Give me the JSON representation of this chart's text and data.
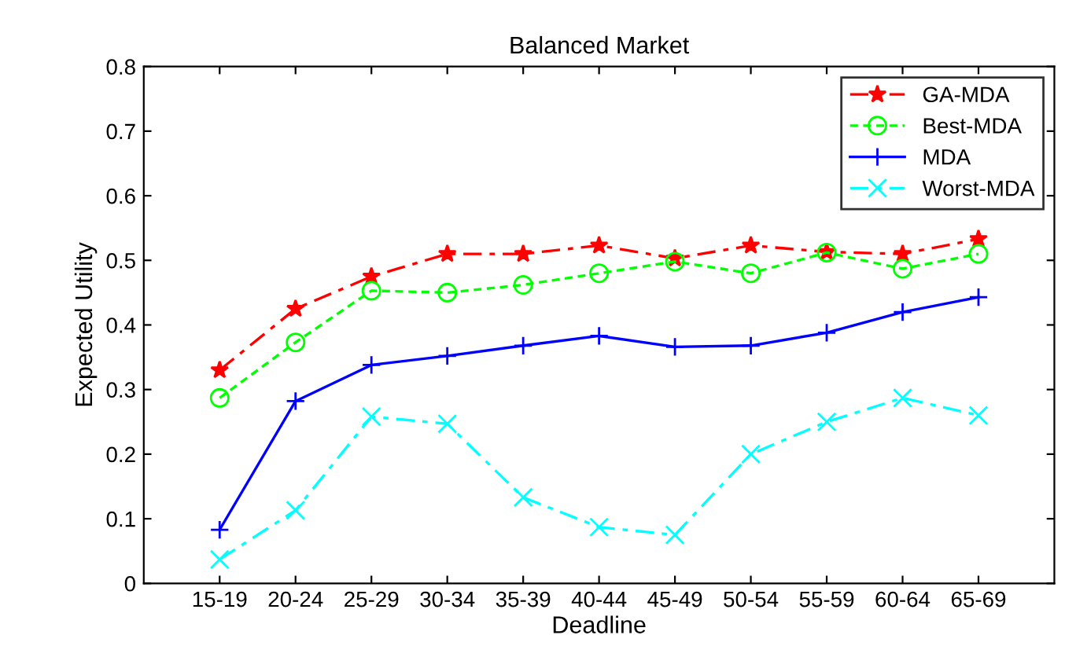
{
  "chart_data": {
    "type": "line",
    "title": "Balanced Market",
    "xlabel": "Deadline",
    "ylabel": "Expected Utility",
    "categories": [
      "15-19",
      "20-24",
      "25-29",
      "30-34",
      "35-39",
      "40-44",
      "45-49",
      "50-54",
      "55-59",
      "60-64",
      "65-69"
    ],
    "series": [
      {
        "name": "GA-MDA",
        "color": "#ff0000",
        "marker": "star",
        "line_style": "dashed",
        "values": [
          0.33,
          0.425,
          0.475,
          0.51,
          0.51,
          0.523,
          0.503,
          0.523,
          0.513,
          0.51,
          0.533
        ]
      },
      {
        "name": "Best-MDA",
        "color": "#00ff00",
        "marker": "circle",
        "line_style": "dotted",
        "values": [
          0.287,
          0.373,
          0.453,
          0.45,
          0.462,
          0.48,
          0.498,
          0.48,
          0.512,
          0.487,
          0.51
        ]
      },
      {
        "name": "MDA",
        "color": "#0000ff",
        "marker": "plus",
        "line_style": "solid",
        "values": [
          0.083,
          0.282,
          0.338,
          0.352,
          0.368,
          0.383,
          0.366,
          0.368,
          0.388,
          0.42,
          0.443
        ]
      },
      {
        "name": "Worst-MDA",
        "color": "#00ffff",
        "marker": "cross",
        "line_style": "dashed",
        "values": [
          0.037,
          0.113,
          0.258,
          0.247,
          0.133,
          0.087,
          0.075,
          0.2,
          0.25,
          0.287,
          0.26
        ]
      }
    ],
    "ylim": [
      0,
      0.8
    ],
    "yticks": [
      0,
      0.1,
      0.2,
      0.3,
      0.4,
      0.5,
      0.6,
      0.7,
      0.8
    ],
    "grid": false,
    "legend": "top right"
  }
}
